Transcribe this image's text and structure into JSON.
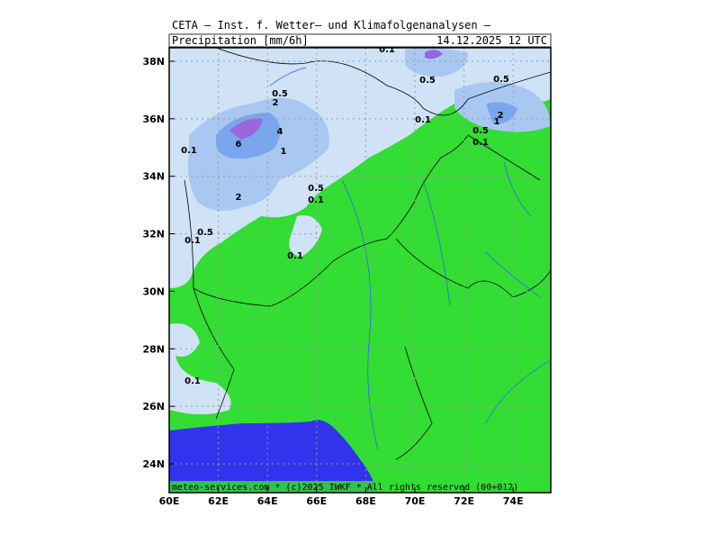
{
  "header": {
    "title": "CETA — Inst. f. Wetter— und Klimafolgenanalysen —",
    "product": "Precipitation_[mm/6h]",
    "valid": "14.12.2025 12 UTC"
  },
  "map": {
    "lon_ticks": [
      {
        "value": 60,
        "label": "60E"
      },
      {
        "value": 62,
        "label": "62E"
      },
      {
        "value": 64,
        "label": "64E"
      },
      {
        "value": 66,
        "label": "66E"
      },
      {
        "value": 68,
        "label": "68E"
      },
      {
        "value": 70,
        "label": "70E"
      },
      {
        "value": 72,
        "label": "72E"
      },
      {
        "value": 74,
        "label": "74E"
      }
    ],
    "lat_ticks": [
      {
        "value": 38,
        "label": "38N"
      },
      {
        "value": 36,
        "label": "36N"
      },
      {
        "value": 34,
        "label": "34N"
      },
      {
        "value": 32,
        "label": "32N"
      },
      {
        "value": 30,
        "label": "30N"
      },
      {
        "value": 28,
        "label": "28N"
      },
      {
        "value": 26,
        "label": "26N"
      },
      {
        "value": 24,
        "label": "24N"
      }
    ],
    "contour_labels": [
      "0.1",
      "0.5",
      "0.5",
      "0.5",
      "2",
      "0.1",
      "2",
      "1",
      "0.5",
      "0.1",
      "4",
      "6",
      "0.1",
      "1",
      "0.5",
      "0.1",
      "2",
      "0.5",
      "0.1",
      "0.1",
      "0.1"
    ]
  },
  "footer": "meteo-services.com * (c)2025 IWKF * All rights reserved (00+012)"
}
